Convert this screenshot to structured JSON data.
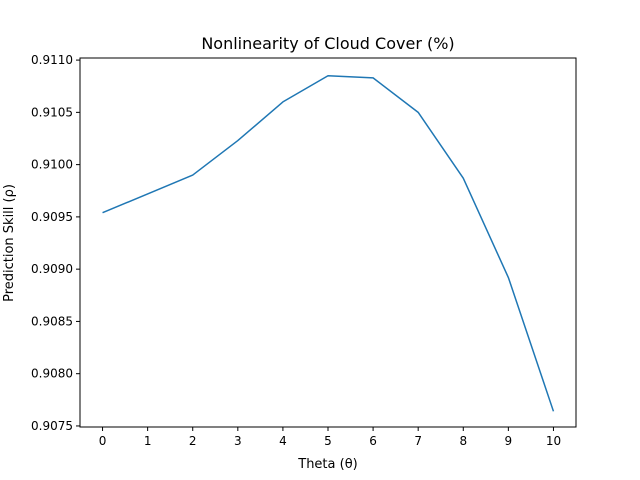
{
  "chart_data": {
    "type": "line",
    "title": "Nonlinearity of Cloud Cover (%)",
    "xlabel": "Theta (θ)",
    "ylabel": "Prediction Skill (ρ)",
    "x": [
      0,
      1,
      2,
      3,
      4,
      5,
      6,
      7,
      8,
      9,
      10
    ],
    "xticks": [
      "0",
      "1",
      "2",
      "3",
      "4",
      "5",
      "6",
      "7",
      "8",
      "9",
      "10"
    ],
    "yticks": [
      "0.9075",
      "0.9080",
      "0.9085",
      "0.9090",
      "0.9095",
      "0.9100",
      "0.9105",
      "0.9110"
    ],
    "series": [
      {
        "values": [
          0.90954,
          0.90972,
          0.9099,
          0.91023,
          0.9106,
          0.91085,
          0.91083,
          0.9105,
          0.90987,
          0.90892,
          0.90764
        ],
        "color": "#1f77b4"
      }
    ],
    "xlim": [
      -0.5,
      10.5
    ],
    "ylim": [
      0.90749,
      0.91102
    ],
    "grid": false
  }
}
